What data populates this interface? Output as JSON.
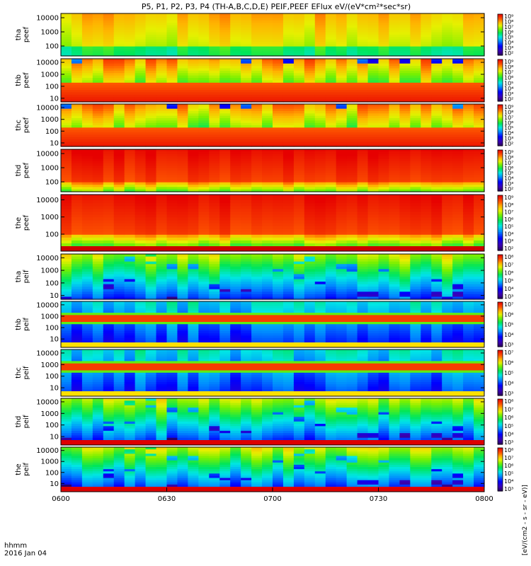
{
  "figure_title": "P5, P1, P2, P3, P4 (TH-A,B,C,D,E) PEIF,PEEF EFlux eV/(eV*cm²*sec*sr)",
  "time_axis": {
    "label_line1": "hhmm",
    "label_line2": "2016 Jan 04",
    "ticks": [
      "0600",
      "0630",
      "0700",
      "0730",
      "0800"
    ]
  },
  "colorbar_label": "[eV/(cm2 - s - sr - eV)]",
  "chart_data": [
    {
      "type": "heatmap",
      "probe": "tha",
      "instrument": "peef",
      "ylabel_1": "tha",
      "ylabel_2": "peef",
      "yscale": "log",
      "ylim": [
        20,
        20000
      ],
      "yticks": [
        "10000",
        "1000",
        "100"
      ],
      "colorbar_ticks": [
        "10⁹",
        "10⁸",
        "10⁷",
        "10⁶",
        "10⁵",
        "10⁴",
        "10³",
        "10²"
      ],
      "intensity": "medium",
      "colormap": "rainbow"
    },
    {
      "type": "heatmap",
      "probe": "thb",
      "instrument": "peef",
      "ylabel_1": "thb",
      "ylabel_2": "peef",
      "yscale": "log",
      "ylim": [
        5,
        20000
      ],
      "yticks": [
        "10000",
        "1000",
        "100",
        "10"
      ],
      "colorbar_ticks": [
        "10⁹",
        "10⁸",
        "10⁷",
        "10⁶",
        "10⁵",
        "10⁴",
        "10³",
        "10²"
      ],
      "intensity": "high-low-energy",
      "colormap": "rainbow"
    },
    {
      "type": "heatmap",
      "probe": "thc",
      "instrument": "peef",
      "ylabel_1": "thc",
      "ylabel_2": "peef",
      "yscale": "log",
      "ylim": [
        5,
        20000
      ],
      "yticks": [
        "10000",
        "1000",
        "100",
        "10"
      ],
      "colorbar_ticks": [
        "10⁹",
        "10⁸",
        "10⁷",
        "10⁶",
        "10⁵",
        "10⁴",
        "10³",
        "10²"
      ],
      "intensity": "high-low-energy",
      "colormap": "rainbow"
    },
    {
      "type": "heatmap",
      "probe": "thd",
      "instrument": "peef",
      "ylabel_1": "thd",
      "ylabel_2": "peef",
      "yscale": "log",
      "ylim": [
        20,
        20000
      ],
      "yticks": [
        "10000",
        "1000",
        "100"
      ],
      "colorbar_ticks": [
        "10⁹",
        "10⁸",
        "10⁷",
        "10⁶",
        "10⁵",
        "10⁴",
        "10³",
        "10²"
      ],
      "intensity": "high",
      "colormap": "rainbow"
    },
    {
      "type": "heatmap",
      "probe": "the",
      "instrument": "peef",
      "ylabel_1": "the",
      "ylabel_2": "peef",
      "yscale": "log",
      "ylim": [
        20,
        20000
      ],
      "yticks": [
        "10000",
        "1000",
        "100"
      ],
      "colorbar_ticks": [
        "10⁹",
        "10⁸",
        "10⁷",
        "10⁶",
        "10⁵",
        "10⁴",
        "10³",
        "10²"
      ],
      "intensity": "high",
      "colormap": "rainbow"
    },
    {
      "type": "heatmap",
      "probe": "tha",
      "instrument": "peif",
      "ylabel_1": "tha",
      "ylabel_2": "peif",
      "yscale": "log",
      "ylim": [
        5,
        20000
      ],
      "yticks": [
        "10000",
        "1000",
        "100",
        "10"
      ],
      "colorbar_ticks": [
        "10⁸",
        "10⁷",
        "10⁶",
        "10⁵",
        "10⁴",
        "10³"
      ],
      "intensity": "low",
      "colormap": "rainbow"
    },
    {
      "type": "heatmap",
      "probe": "thb",
      "instrument": "peif",
      "ylabel_1": "thb",
      "ylabel_2": "peif",
      "yscale": "log",
      "ylim": [
        5,
        20000
      ],
      "yticks": [
        "10000",
        "1000",
        "100",
        "10"
      ],
      "colorbar_ticks": [
        "10⁷",
        "10⁶",
        "10⁵",
        "10⁴",
        "10³"
      ],
      "intensity": "band",
      "colormap": "rainbow"
    },
    {
      "type": "heatmap",
      "probe": "thc",
      "instrument": "peif",
      "ylabel_1": "thc",
      "ylabel_2": "peif",
      "yscale": "log",
      "ylim": [
        5,
        20000
      ],
      "yticks": [
        "10000",
        "1000",
        "100",
        "10"
      ],
      "colorbar_ticks": [
        "10⁷",
        "10⁶",
        "10⁵",
        "10⁴",
        "10³"
      ],
      "intensity": "band",
      "colormap": "rainbow"
    },
    {
      "type": "heatmap",
      "probe": "thd",
      "instrument": "peif",
      "ylabel_1": "thd",
      "ylabel_2": "peif",
      "yscale": "log",
      "ylim": [
        5,
        20000
      ],
      "yticks": [
        "10000",
        "1000",
        "100",
        "10"
      ],
      "colorbar_ticks": [
        "10⁸",
        "10⁷",
        "10⁶",
        "10⁵",
        "10⁴",
        "10³"
      ],
      "intensity": "low",
      "colormap": "rainbow"
    },
    {
      "type": "heatmap",
      "probe": "the",
      "instrument": "peif",
      "ylabel_1": "the",
      "ylabel_2": "peif",
      "yscale": "log",
      "ylim": [
        5,
        20000
      ],
      "yticks": [
        "10000",
        "1000",
        "100",
        "10"
      ],
      "colorbar_ticks": [
        "10⁸",
        "10⁷",
        "10⁶",
        "10⁵",
        "10⁴",
        "10³"
      ],
      "intensity": "low",
      "colormap": "rainbow"
    }
  ]
}
